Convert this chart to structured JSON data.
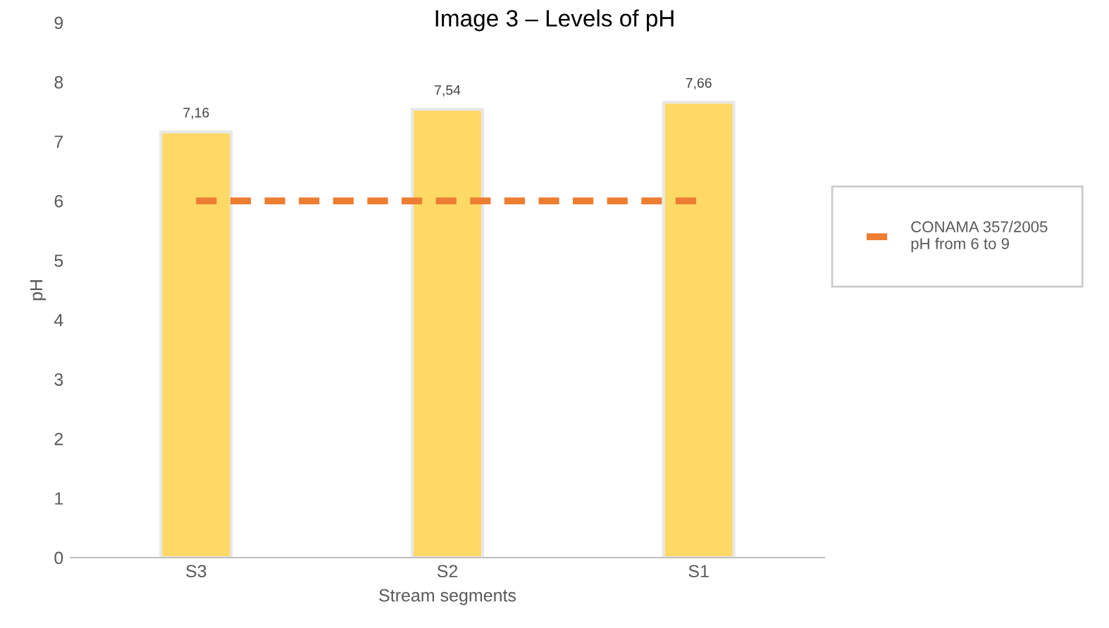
{
  "chart_data": {
    "type": "bar",
    "title": "Image 3 – Levels of pH",
    "xlabel": "Stream segments",
    "ylabel": "pH",
    "categories": [
      "S3",
      "S2",
      "S1"
    ],
    "series": [
      {
        "color": "#ffd966",
        "values": [
          7.16,
          7.54,
          7.66
        ],
        "value_labels": [
          "7,16",
          "7,54",
          "7,66"
        ]
      },
      {
        "type": "line",
        "name": "CONAMA 357/2005\npH from 6 to 9",
        "color": "#ed7d31",
        "values": [
          6,
          6,
          6
        ],
        "line_style": "dashed"
      }
    ],
    "ylim": [
      0,
      9
    ],
    "yticks": [
      0,
      1,
      2,
      3,
      4,
      5,
      6,
      7,
      8,
      9
    ],
    "grid": false,
    "legend": "right"
  }
}
